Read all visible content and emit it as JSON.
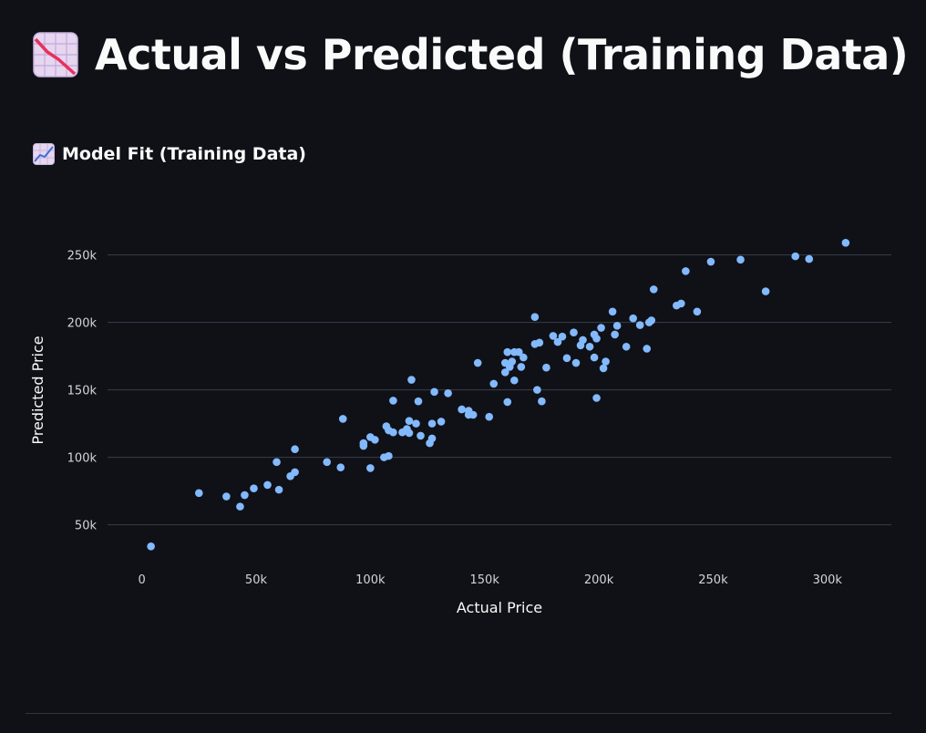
{
  "title": {
    "text": "Actual vs Predicted (Training Data)",
    "icon": "chart-decreasing-icon"
  },
  "subheader": {
    "text": "Model Fit (Training Data)",
    "icon": "chart-increasing-icon"
  },
  "colors": {
    "background": "#0f1117",
    "point": "#83b9fd",
    "grid": "#3a3d4a",
    "text": "#fafafa",
    "tick": "#d4d4d8"
  },
  "chart_data": {
    "type": "scatter",
    "xlabel": "Actual Price",
    "ylabel": "Predicted Price",
    "xlim": [
      -15000,
      328000
    ],
    "ylim": [
      20000,
      268000
    ],
    "grid": "horizontal",
    "x_ticks": [
      {
        "value": 0,
        "label": "0"
      },
      {
        "value": 50000,
        "label": "50k"
      },
      {
        "value": 100000,
        "label": "100k"
      },
      {
        "value": 150000,
        "label": "150k"
      },
      {
        "value": 200000,
        "label": "200k"
      },
      {
        "value": 250000,
        "label": "250k"
      },
      {
        "value": 300000,
        "label": "300k"
      }
    ],
    "y_ticks": [
      {
        "value": 50000,
        "label": "50k"
      },
      {
        "value": 100000,
        "label": "100k"
      },
      {
        "value": 150000,
        "label": "150k"
      },
      {
        "value": 200000,
        "label": "200k"
      },
      {
        "value": 250000,
        "label": "250k"
      }
    ],
    "points": [
      [
        4000,
        34000
      ],
      [
        25000,
        73500
      ],
      [
        37000,
        71000
      ],
      [
        43000,
        63500
      ],
      [
        45000,
        72000
      ],
      [
        49000,
        77000
      ],
      [
        55000,
        79500
      ],
      [
        59000,
        96500
      ],
      [
        60000,
        76000
      ],
      [
        65000,
        86000
      ],
      [
        67000,
        106000
      ],
      [
        67000,
        89000
      ],
      [
        81000,
        96500
      ],
      [
        87000,
        92500
      ],
      [
        88000,
        128500
      ],
      [
        97000,
        110500
      ],
      [
        97000,
        108500
      ],
      [
        100000,
        92000
      ],
      [
        100000,
        115000
      ],
      [
        102000,
        113000
      ],
      [
        106000,
        100000
      ],
      [
        107000,
        123000
      ],
      [
        108000,
        101000
      ],
      [
        108000,
        120000
      ],
      [
        110000,
        142000
      ],
      [
        110000,
        118500
      ],
      [
        114000,
        118500
      ],
      [
        116000,
        121000
      ],
      [
        117000,
        118000
      ],
      [
        117000,
        127000
      ],
      [
        118000,
        157500
      ],
      [
        120000,
        125000
      ],
      [
        121000,
        141500
      ],
      [
        122000,
        116000
      ],
      [
        126000,
        110500
      ],
      [
        127000,
        114000
      ],
      [
        127000,
        125000
      ],
      [
        128000,
        148500
      ],
      [
        131000,
        126500
      ],
      [
        134000,
        147500
      ],
      [
        140000,
        135500
      ],
      [
        143000,
        131500
      ],
      [
        143000,
        134500
      ],
      [
        145000,
        131500
      ],
      [
        147000,
        170000
      ],
      [
        152000,
        130000
      ],
      [
        154000,
        154500
      ],
      [
        159000,
        170000
      ],
      [
        159000,
        163000
      ],
      [
        160000,
        178000
      ],
      [
        160000,
        141000
      ],
      [
        161000,
        167000
      ],
      [
        162000,
        171000
      ],
      [
        163000,
        157000
      ],
      [
        163000,
        178000
      ],
      [
        165000,
        178000
      ],
      [
        166000,
        167000
      ],
      [
        167000,
        174000
      ],
      [
        172000,
        184000
      ],
      [
        172000,
        204000
      ],
      [
        173000,
        150000
      ],
      [
        174000,
        185000
      ],
      [
        175000,
        141500
      ],
      [
        177000,
        166500
      ],
      [
        180000,
        190000
      ],
      [
        182000,
        185500
      ],
      [
        184000,
        189500
      ],
      [
        186000,
        173500
      ],
      [
        189000,
        192500
      ],
      [
        190000,
        170000
      ],
      [
        192000,
        183000
      ],
      [
        193000,
        187000
      ],
      [
        196000,
        182000
      ],
      [
        198000,
        191000
      ],
      [
        198000,
        174000
      ],
      [
        199000,
        188000
      ],
      [
        199000,
        144000
      ],
      [
        201000,
        196000
      ],
      [
        202000,
        166000
      ],
      [
        203000,
        171000
      ],
      [
        206000,
        208000
      ],
      [
        207000,
        191000
      ],
      [
        208000,
        197500
      ],
      [
        212000,
        182000
      ],
      [
        215000,
        203000
      ],
      [
        218000,
        198000
      ],
      [
        221000,
        180500
      ],
      [
        222000,
        200000
      ],
      [
        223000,
        201500
      ],
      [
        224000,
        224500
      ],
      [
        234000,
        212500
      ],
      [
        236000,
        214000
      ],
      [
        238000,
        238000
      ],
      [
        243000,
        208000
      ],
      [
        249000,
        245000
      ],
      [
        262000,
        246500
      ],
      [
        273000,
        223000
      ],
      [
        286000,
        249000
      ],
      [
        292000,
        247000
      ],
      [
        308000,
        259000
      ]
    ]
  }
}
